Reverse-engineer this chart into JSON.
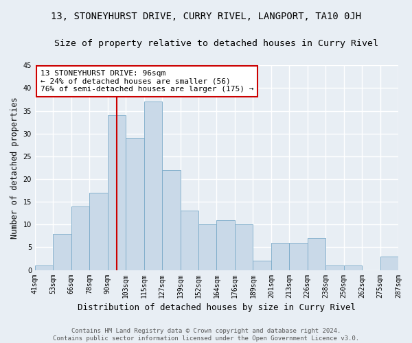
{
  "title": "13, STONEYHURST DRIVE, CURRY RIVEL, LANGPORT, TA10 0JH",
  "subtitle": "Size of property relative to detached houses in Curry Rivel",
  "xlabel": "Distribution of detached houses by size in Curry Rivel",
  "ylabel": "Number of detached properties",
  "bar_values": [
    1,
    8,
    14,
    17,
    34,
    29,
    37,
    22,
    13,
    10,
    11,
    10,
    2,
    6,
    6,
    7,
    1,
    1,
    0,
    3
  ],
  "bar_labels": [
    "41sqm",
    "53sqm",
    "66sqm",
    "78sqm",
    "90sqm",
    "103sqm",
    "115sqm",
    "127sqm",
    "139sqm",
    "152sqm",
    "164sqm",
    "176sqm",
    "189sqm",
    "201sqm",
    "213sqm",
    "226sqm",
    "238sqm",
    "250sqm",
    "262sqm",
    "275sqm",
    "287sqm"
  ],
  "bar_color": "#c9d9e8",
  "bar_edgecolor": "#7aaac8",
  "vline_x": 4.5,
  "vline_color": "#cc0000",
  "annotation_text": "13 STONEYHURST DRIVE: 96sqm\n← 24% of detached houses are smaller (56)\n76% of semi-detached houses are larger (175) →",
  "annotation_box_color": "#ffffff",
  "annotation_box_edgecolor": "#cc0000",
  "ylim": [
    0,
    45
  ],
  "yticks": [
    0,
    5,
    10,
    15,
    20,
    25,
    30,
    35,
    40,
    45
  ],
  "bg_color": "#e8eef4",
  "plot_bg_color": "#e8eef4",
  "grid_color": "#ffffff",
  "footer_text": "Contains HM Land Registry data © Crown copyright and database right 2024.\nContains public sector information licensed under the Open Government Licence v3.0.",
  "title_fontsize": 10,
  "subtitle_fontsize": 9.5,
  "xlabel_fontsize": 9,
  "ylabel_fontsize": 8.5,
  "tick_fontsize": 7,
  "annotation_fontsize": 8,
  "footer_fontsize": 6.5
}
